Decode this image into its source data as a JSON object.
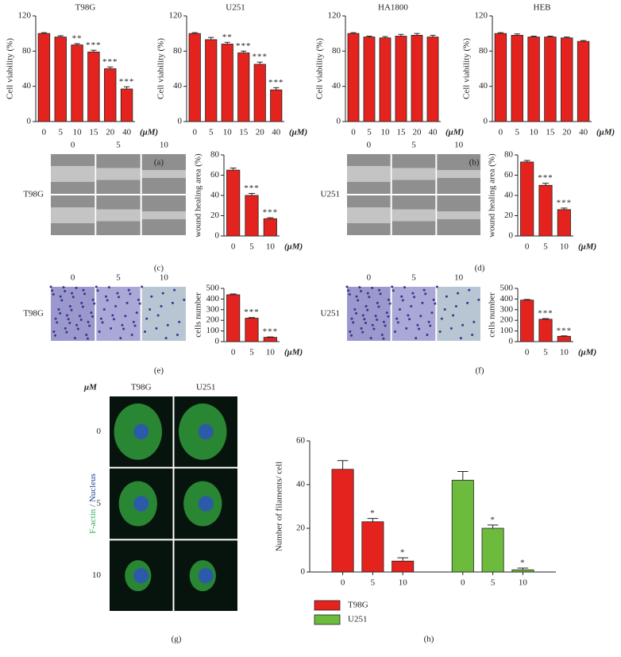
{
  "chart_data": [
    {
      "type": "bar",
      "title": "T98G",
      "ylabel": "Cell viability (%)",
      "categories": [
        "0",
        "5",
        "10",
        "15",
        "20",
        "40"
      ],
      "xunit": "(μM)",
      "values": [
        100,
        96,
        87,
        79,
        60,
        37
      ],
      "errors": [
        1,
        1.5,
        1.5,
        2,
        2,
        2.5
      ],
      "annotations": [
        null,
        null,
        "**",
        "***",
        "***",
        "***"
      ],
      "color": "#e5231e",
      "ylim": [
        0,
        120
      ],
      "yticks": [
        0,
        40,
        80,
        120
      ]
    },
    {
      "type": "bar",
      "title": "U251",
      "ylabel": "Cell viability (%)",
      "categories": [
        "0",
        "5",
        "10",
        "15",
        "20",
        "40"
      ],
      "xunit": "(μM)",
      "values": [
        100,
        93,
        88,
        78,
        65,
        36
      ],
      "errors": [
        1,
        2.5,
        2,
        2,
        2.5,
        2.5
      ],
      "annotations": [
        null,
        null,
        "**",
        "***",
        "***",
        "***"
      ],
      "color": "#e5231e",
      "ylim": [
        0,
        120
      ],
      "yticks": [
        0,
        40,
        80,
        120
      ]
    },
    {
      "type": "bar",
      "title": "HA1800",
      "ylabel": "Cell viability (%)",
      "categories": [
        "0",
        "5",
        "10",
        "15",
        "20",
        "40"
      ],
      "xunit": "(μM)",
      "values": [
        100,
        96,
        95,
        97,
        98,
        96
      ],
      "errors": [
        1,
        1,
        1.5,
        2,
        2,
        2
      ],
      "annotations": [
        null,
        null,
        null,
        null,
        null,
        null
      ],
      "color": "#e5231e",
      "ylim": [
        0,
        120
      ],
      "yticks": [
        0,
        40,
        80,
        120
      ]
    },
    {
      "type": "bar",
      "title": "HEB",
      "ylabel": "Cell viability (%)",
      "categories": [
        "0",
        "5",
        "10",
        "15",
        "20",
        "40"
      ],
      "xunit": "(μM)",
      "values": [
        100,
        98,
        96,
        96,
        95,
        91
      ],
      "errors": [
        1,
        1.5,
        1,
        1,
        1,
        1
      ],
      "annotations": [
        null,
        null,
        null,
        null,
        null,
        null
      ],
      "color": "#e5231e",
      "ylim": [
        0,
        120
      ],
      "yticks": [
        0,
        40,
        80,
        120
      ]
    },
    {
      "type": "bar",
      "ylabel": "wound healing area (%)",
      "categories": [
        "0",
        "5",
        "10"
      ],
      "xunit": "(μM)",
      "values": [
        65,
        40,
        17
      ],
      "errors": [
        2,
        2,
        1
      ],
      "annotations": [
        null,
        "***",
        "***"
      ],
      "color": "#e5231e",
      "ylim": [
        0,
        80
      ],
      "yticks": [
        0,
        20,
        40,
        60,
        80
      ]
    },
    {
      "type": "bar",
      "ylabel": "wound healing area (%)",
      "categories": [
        "0",
        "5",
        "10"
      ],
      "xunit": "(μM)",
      "values": [
        73,
        50,
        26
      ],
      "errors": [
        1.5,
        2,
        1.5
      ],
      "annotations": [
        null,
        "***",
        "***"
      ],
      "color": "#e5231e",
      "ylim": [
        0,
        80
      ],
      "yticks": [
        0,
        20,
        40,
        60,
        80
      ]
    },
    {
      "type": "bar",
      "ylabel": "cells number",
      "categories": [
        "0",
        "5",
        "10"
      ],
      "xunit": "(μM)",
      "values": [
        440,
        220,
        40
      ],
      "errors": [
        8,
        6,
        4
      ],
      "annotations": [
        null,
        "***",
        "***"
      ],
      "color": "#e5231e",
      "ylim": [
        0,
        500
      ],
      "yticks": [
        0,
        100,
        200,
        300,
        400,
        500
      ]
    },
    {
      "type": "bar",
      "ylabel": "cells number",
      "categories": [
        "0",
        "5",
        "10"
      ],
      "xunit": "(μM)",
      "values": [
        390,
        210,
        50
      ],
      "errors": [
        6,
        6,
        4
      ],
      "annotations": [
        null,
        "***",
        "***"
      ],
      "color": "#e5231e",
      "ylim": [
        0,
        500
      ],
      "yticks": [
        0,
        100,
        200,
        300,
        400,
        500
      ]
    },
    {
      "type": "bar",
      "ylabel": "Number of filaments/ cell",
      "categories": [
        "0",
        "5",
        "10"
      ],
      "legend": "bottom-left",
      "series": [
        {
          "name": "T98G",
          "color": "#e5231e",
          "values": [
            47,
            23,
            5
          ],
          "errors": [
            4,
            1.5,
            1.5
          ],
          "annotations": [
            null,
            "*",
            "*"
          ]
        },
        {
          "name": "U251",
          "color": "#6cbb3c",
          "values": [
            42,
            20,
            1
          ],
          "errors": [
            4,
            1.5,
            0.8
          ],
          "annotations": [
            null,
            "*",
            "*"
          ]
        }
      ],
      "ylim": [
        0,
        60
      ],
      "yticks": [
        0,
        20,
        40,
        60
      ]
    }
  ],
  "figure": {
    "panel_labels": [
      "(a)",
      "(b)",
      "(c)",
      "(d)",
      "(e)",
      "(f)",
      "(g)",
      "(h)"
    ],
    "image_panels": [
      {
        "column_labels": [
          "0",
          "5",
          "10"
        ],
        "row_labels": [
          "T98G"
        ]
      },
      {
        "column_labels": [
          "0",
          "5",
          "10"
        ],
        "row_labels": [
          "U251"
        ]
      },
      {
        "column_labels": [
          "0",
          "5",
          "10"
        ],
        "row_labels": [
          "T98G"
        ]
      },
      {
        "column_labels": [
          "0",
          "5",
          "10"
        ],
        "row_labels": [
          "U251"
        ]
      },
      {
        "unit": "μM",
        "column_labels": [
          "T98G",
          "U251"
        ],
        "row_labels": [
          "0",
          "5",
          "10"
        ],
        "stain": [
          "F-actin",
          " / ",
          "Nucleus"
        ]
      }
    ]
  }
}
